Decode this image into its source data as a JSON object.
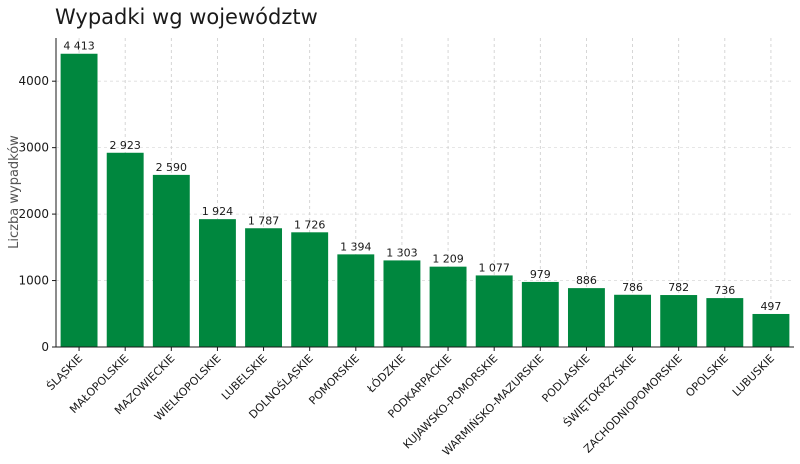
{
  "chart_data": {
    "type": "bar",
    "title": "Wypadki wg województw",
    "xlabel": "",
    "ylabel": "Liczba wypadków",
    "ylim": [
      0,
      4650
    ],
    "yticks": [
      0,
      1000,
      2000,
      3000,
      4000
    ],
    "grid": true,
    "bar_color": "#00873e",
    "categories": [
      "ŚLĄSKIE",
      "MAŁOPOLSKIE",
      "MAZOWIECKIE",
      "WIELKOPOLSKIE",
      "LUBELSKIE",
      "DOLNOŚLĄSKIE",
      "POMORSKIE",
      "ŁÓDZKIE",
      "PODKARPACKIE",
      "KUJAWSKO-POMORSKIE",
      "WARMIŃSKO-MAZURSKIE",
      "PODLASKIE",
      "ŚWIĘTOKRZYSKIE",
      "ZACHODNIOPOMORSKIE",
      "OPOLSKIE",
      "LUBUSKIE"
    ],
    "values": [
      4413,
      2923,
      2590,
      1924,
      1787,
      1726,
      1394,
      1303,
      1209,
      1077,
      979,
      886,
      786,
      782,
      736,
      497
    ],
    "value_labels": [
      "4 413",
      "2 923",
      "2 590",
      "1 924",
      "1 787",
      "1 726",
      "1 394",
      "1 303",
      "1 209",
      "1 077",
      "979",
      "886",
      "786",
      "782",
      "736",
      "497"
    ]
  }
}
